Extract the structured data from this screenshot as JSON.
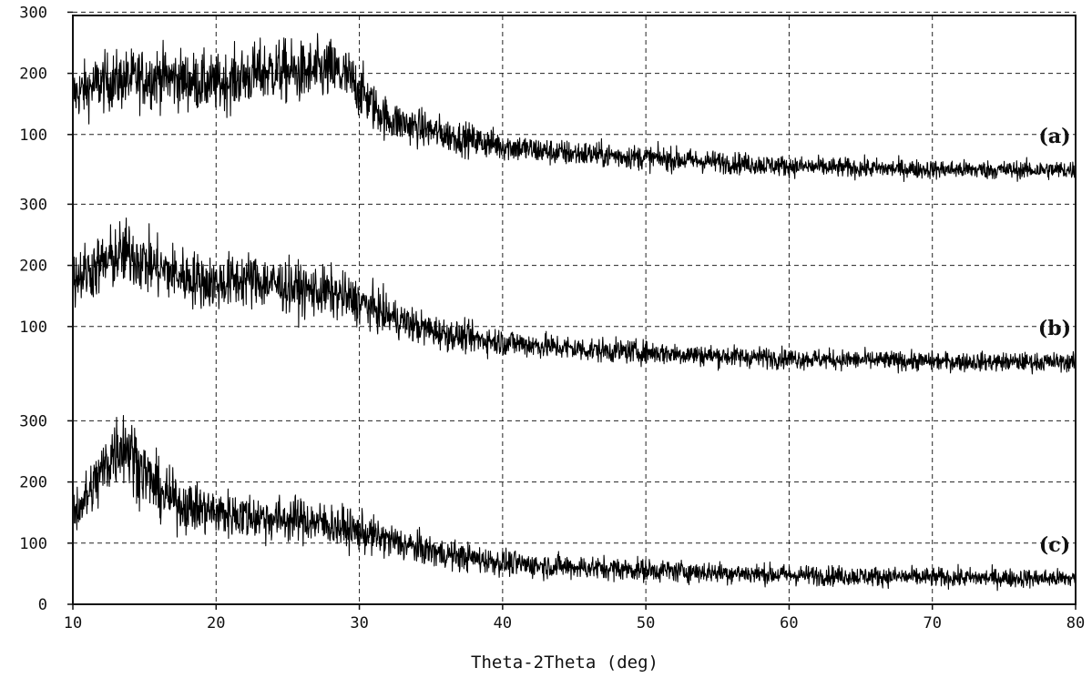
{
  "chart_data": {
    "type": "line",
    "title": "",
    "xlabel": "Theta-2Theta (deg)",
    "ylabel": "",
    "xlim": [
      10,
      80
    ],
    "x_ticks": [
      "10",
      "20",
      "30",
      "40",
      "50",
      "60",
      "70",
      "80"
    ],
    "grid": true,
    "layout": "three vertically stacked panels sharing the x axis",
    "panels": [
      {
        "label": "(a)",
        "ylim": [
          0,
          300
        ],
        "y_ticks": [
          "100",
          "200",
          "300"
        ],
        "series": [
          {
            "x": [
              10,
              12,
              14,
              16,
              18,
              20,
              22,
              24,
              26,
              28,
              29,
              30,
              31,
              32,
              34,
              36,
              38,
              40,
              42,
              44,
              46,
              48,
              50,
              55,
              60,
              65,
              70,
              75,
              80
            ],
            "y": [
              165,
              185,
              190,
              195,
              188,
              182,
              195,
              205,
              200,
              205,
              195,
              175,
              145,
              125,
              112,
              100,
              90,
              82,
              75,
              70,
              68,
              65,
              62,
              55,
              48,
              45,
              43,
              42,
              42
            ]
          }
        ]
      },
      {
        "label": "(b)",
        "ylim": [
          0,
          300
        ],
        "y_ticks": [
          "100",
          "200",
          "300"
        ],
        "series": [
          {
            "x": [
              10,
              11,
              12,
              13,
              14,
              15,
              16,
              18,
              20,
              22,
              24,
              26,
              28,
              30,
              32,
              34,
              36,
              38,
              40,
              42,
              44,
              46,
              48,
              50,
              55,
              60,
              65,
              70,
              75,
              80
            ],
            "y": [
              180,
              190,
              200,
              215,
              220,
              205,
              195,
              180,
              170,
              178,
              170,
              160,
              155,
              140,
              118,
              100,
              88,
              80,
              75,
              70,
              66,
              62,
              60,
              58,
              52,
              48,
              45,
              43,
              42,
              42
            ]
          }
        ]
      },
      {
        "label": "(c)",
        "ylim": [
          0,
          300
        ],
        "y_ticks": [
          "0",
          "100",
          "200",
          "300"
        ],
        "series": [
          {
            "x": [
              10,
              11,
              12,
              13,
              13.5,
              14,
              15,
              16,
              17,
              18,
              20,
              22,
              24,
              26,
              28,
              30,
              32,
              34,
              36,
              38,
              40,
              42,
              44,
              46,
              48,
              50,
              55,
              60,
              65,
              70,
              75,
              80
            ],
            "y": [
              150,
              175,
              215,
              255,
              265,
              250,
              215,
              185,
              170,
              160,
              150,
              145,
              140,
              138,
              130,
              118,
              105,
              92,
              82,
              75,
              68,
              64,
              62,
              60,
              58,
              56,
              52,
              48,
              46,
              44,
              43,
              42
            ]
          }
        ]
      }
    ]
  }
}
